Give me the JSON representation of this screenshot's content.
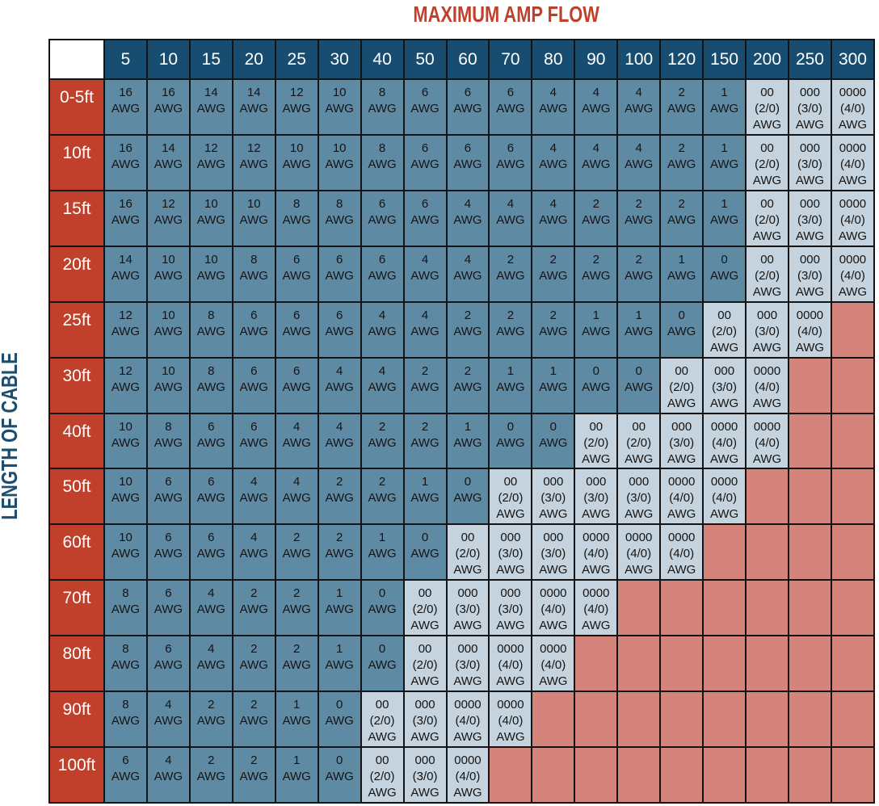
{
  "chart_data": {
    "type": "table",
    "title": "MAXIMUM AMP FLOW",
    "row_axis_label": "LENGTH OF CABLE",
    "column_headers": [
      "5",
      "10",
      "15",
      "20",
      "25",
      "30",
      "40",
      "50",
      "60",
      "70",
      "80",
      "90",
      "100",
      "120",
      "150",
      "200",
      "250",
      "300"
    ],
    "rows": [
      {
        "label": "0-5ft",
        "cells": [
          "16\nAWG",
          "16\nAWG",
          "14\nAWG",
          "14\nAWG",
          "12\nAWG",
          "10\nAWG",
          "8\nAWG",
          "6\nAWG",
          "6\nAWG",
          "6\nAWG",
          "4\nAWG",
          "4\nAWG",
          "4\nAWG",
          "2\nAWG",
          "1\nAWG",
          "00\n(2/0)\nAWG",
          "000\n(3/0)\nAWG",
          "0000\n(4/0)\nAWG"
        ]
      },
      {
        "label": "10ft",
        "cells": [
          "16\nAWG",
          "14\nAWG",
          "12\nAWG",
          "12\nAWG",
          "10\nAWG",
          "10\nAWG",
          "8\nAWG",
          "6\nAWG",
          "6\nAWG",
          "6\nAWG",
          "4\nAWG",
          "4\nAWG",
          "4\nAWG",
          "2\nAWG",
          "1\nAWG",
          "00\n(2/0)\nAWG",
          "000\n(3/0)\nAWG",
          "0000\n(4/0)\nAWG"
        ]
      },
      {
        "label": "15ft",
        "cells": [
          "16\nAWG",
          "12\nAWG",
          "10\nAWG",
          "10\nAWG",
          "8\nAWG",
          "8\nAWG",
          "6\nAWG",
          "6\nAWG",
          "4\nAWG",
          "4\nAWG",
          "4\nAWG",
          "2\nAWG",
          "2\nAWG",
          "2\nAWG",
          "1\nAWG",
          "00\n(2/0)\nAWG",
          "000\n(3/0)\nAWG",
          "0000\n(4/0)\nAWG"
        ]
      },
      {
        "label": "20ft",
        "cells": [
          "14\nAWG",
          "10\nAWG",
          "10\nAWG",
          "8\nAWG",
          "6\nAWG",
          "6\nAWG",
          "6\nAWG",
          "4\nAWG",
          "4\nAWG",
          "2\nAWG",
          "2\nAWG",
          "2\nAWG",
          "2\nAWG",
          "1\nAWG",
          "0\nAWG",
          "00\n(2/0)\nAWG",
          "000\n(3/0)\nAWG",
          "0000\n(4/0)\nAWG"
        ]
      },
      {
        "label": "25ft",
        "cells": [
          "12\nAWG",
          "10\nAWG",
          "8\nAWG",
          "6\nAWG",
          "6\nAWG",
          "6\nAWG",
          "4\nAWG",
          "4\nAWG",
          "2\nAWG",
          "2\nAWG",
          "2\nAWG",
          "1\nAWG",
          "1\nAWG",
          "0\nAWG",
          "00\n(2/0)\nAWG",
          "000\n(3/0)\nAWG",
          "0000\n(4/0)\nAWG",
          ""
        ]
      },
      {
        "label": "30ft",
        "cells": [
          "12\nAWG",
          "10\nAWG",
          "8\nAWG",
          "6\nAWG",
          "6\nAWG",
          "4\nAWG",
          "4\nAWG",
          "2\nAWG",
          "2\nAWG",
          "1\nAWG",
          "1\nAWG",
          "0\nAWG",
          "0\nAWG",
          "00\n(2/0)\nAWG",
          "000\n(3/0)\nAWG",
          "0000\n(4/0)\nAWG",
          "",
          ""
        ]
      },
      {
        "label": "40ft",
        "cells": [
          "10\nAWG",
          "8\nAWG",
          "6\nAWG",
          "6\nAWG",
          "4\nAWG",
          "4\nAWG",
          "2\nAWG",
          "2\nAWG",
          "1\nAWG",
          "0\nAWG",
          "0\nAWG",
          "00\n(2/0)\nAWG",
          "00\n(2/0)\nAWG",
          "000\n(3/0)\nAWG",
          "0000\n(4/0)\nAWG",
          "0000\n(4/0)\nAWG",
          "",
          ""
        ]
      },
      {
        "label": "50ft",
        "cells": [
          "10\nAWG",
          "6\nAWG",
          "6\nAWG",
          "4\nAWG",
          "4\nAWG",
          "2\nAWG",
          "2\nAWG",
          "1\nAWG",
          "0\nAWG",
          "00\n(2/0)\nAWG",
          "000\n(3/0)\nAWG",
          "000\n(3/0)\nAWG",
          "000\n(3/0)\nAWG",
          "0000\n(4/0)\nAWG",
          "0000\n(4/0)\nAWG",
          "",
          "",
          ""
        ]
      },
      {
        "label": "60ft",
        "cells": [
          "10\nAWG",
          "6\nAWG",
          "6\nAWG",
          "4\nAWG",
          "2\nAWG",
          "2\nAWG",
          "1\nAWG",
          "0\nAWG",
          "00\n(2/0)\nAWG",
          "000\n(3/0)\nAWG",
          "000\n(3/0)\nAWG",
          "0000\n(4/0)\nAWG",
          "0000\n(4/0)\nAWG",
          "0000\n(4/0)\nAWG",
          "",
          "",
          "",
          ""
        ]
      },
      {
        "label": "70ft",
        "cells": [
          "8\nAWG",
          "6\nAWG",
          "4\nAWG",
          "2\nAWG",
          "2\nAWG",
          "1\nAWG",
          "0\nAWG",
          "00\n(2/0)\nAWG",
          "000\n(3/0)\nAWG",
          "000\n(3/0)\nAWG",
          "0000\n(4/0)\nAWG",
          "0000\n(4/0)\nAWG",
          "",
          "",
          "",
          "",
          "",
          ""
        ]
      },
      {
        "label": "80ft",
        "cells": [
          "8\nAWG",
          "6\nAWG",
          "4\nAWG",
          "2\nAWG",
          "2\nAWG",
          "1\nAWG",
          "0\nAWG",
          "00\n(2/0)\nAWG",
          "000\n(3/0)\nAWG",
          "0000\n(4/0)\nAWG",
          "0000\n(4/0)\nAWG",
          "",
          "",
          "",
          "",
          "",
          "",
          ""
        ]
      },
      {
        "label": "90ft",
        "cells": [
          "8\nAWG",
          "4\nAWG",
          "2\nAWG",
          "2\nAWG",
          "1\nAWG",
          "0\nAWG",
          "00\n(2/0)\nAWG",
          "000\n(3/0)\nAWG",
          "0000\n(4/0)\nAWG",
          "0000\n(4/0)\nAWG",
          "",
          "",
          "",
          "",
          "",
          "",
          "",
          ""
        ]
      },
      {
        "label": "100ft",
        "cells": [
          "6\nAWG",
          "4\nAWG",
          "2\nAWG",
          "2\nAWG",
          "1\nAWG",
          "0\nAWG",
          "00\n(2/0)\nAWG",
          "000\n(3/0)\nAWG",
          "0000\n(4/0)\nAWG",
          "",
          "",
          "",
          "",
          "",
          "",
          "",
          "",
          ""
        ]
      }
    ],
    "legend_colors": {
      "header_amp": "#184d72",
      "header_length": "#c0402b",
      "single_digit_gauge": "#5f8aa4",
      "aught_gauge": "#c4d3de",
      "not_applicable": "#d5847b"
    }
  }
}
